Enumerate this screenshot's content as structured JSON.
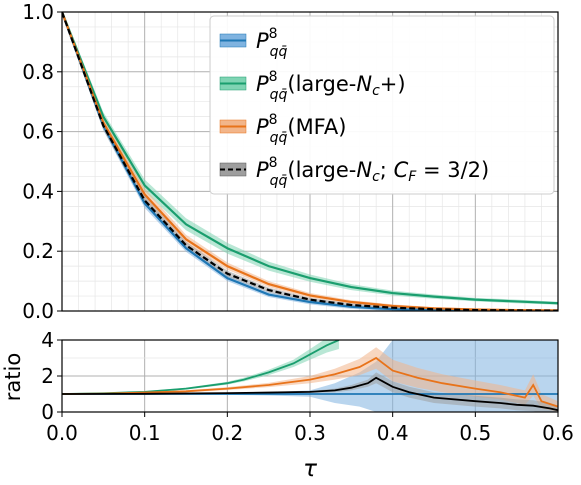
{
  "chart_data": [
    {
      "type": "line",
      "panel": "main",
      "xlabel": "τ",
      "ylabel": "",
      "xlim": [
        0.0,
        0.6
      ],
      "ylim": [
        0.0,
        1.0
      ],
      "xticks": [
        "0.0",
        "0.1",
        "0.2",
        "0.3",
        "0.4",
        "0.5",
        "0.6"
      ],
      "yticks": [
        "0.0",
        "0.2",
        "0.4",
        "0.6",
        "0.8",
        "1.0"
      ],
      "grid": true,
      "minor_grid": true,
      "legend_position": "top-right",
      "series": [
        {
          "name": "P^8_qq̄",
          "color": "#1f77b4",
          "band_color": "#7fb3e0",
          "style": "solid",
          "x": [
            0.0,
            0.05,
            0.1,
            0.15,
            0.2,
            0.25,
            0.3,
            0.35,
            0.4,
            0.45,
            0.5,
            0.55,
            0.6
          ],
          "y": [
            1.0,
            0.62,
            0.36,
            0.21,
            0.11,
            0.055,
            0.03,
            0.014,
            0.006,
            0.003,
            0.002,
            0.001,
            0.001
          ],
          "band": [
            0.01,
            0.015,
            0.015,
            0.012,
            0.01,
            0.008,
            0.008,
            0.007,
            0.006,
            0.005,
            0.004,
            0.003,
            0.003
          ]
        },
        {
          "name": "P^8_qq̄(large-N_c+)",
          "color": "#1a9e6e",
          "band_color": "#7fd4b3",
          "style": "solid",
          "x": [
            0.0,
            0.05,
            0.1,
            0.15,
            0.2,
            0.25,
            0.3,
            0.35,
            0.4,
            0.45,
            0.5,
            0.55,
            0.6
          ],
          "y": [
            1.0,
            0.65,
            0.42,
            0.29,
            0.21,
            0.15,
            0.11,
            0.08,
            0.06,
            0.048,
            0.038,
            0.032,
            0.026
          ],
          "band": [
            0.01,
            0.015,
            0.02,
            0.02,
            0.018,
            0.015,
            0.012,
            0.01,
            0.008,
            0.007,
            0.006,
            0.006,
            0.005
          ]
        },
        {
          "name": "P^8_qq̄(MFA)",
          "color": "#e8731a",
          "band_color": "#f2b58a",
          "style": "solid",
          "x": [
            0.0,
            0.05,
            0.1,
            0.15,
            0.2,
            0.25,
            0.3,
            0.35,
            0.4,
            0.45,
            0.5,
            0.55,
            0.6
          ],
          "y": [
            1.0,
            0.63,
            0.39,
            0.24,
            0.15,
            0.09,
            0.052,
            0.03,
            0.017,
            0.009,
            0.005,
            0.003,
            0.002
          ],
          "band": [
            0.01,
            0.015,
            0.02,
            0.015,
            0.012,
            0.01,
            0.008,
            0.006,
            0.005,
            0.004,
            0.003,
            0.002,
            0.002
          ]
        },
        {
          "name": "P^8_qq̄(large-N_c; C_F = 3/2)",
          "color": "#000000",
          "band_color": "#9e9e9e",
          "style": "dashed",
          "x": [
            0.0,
            0.05,
            0.1,
            0.15,
            0.2,
            0.25,
            0.3,
            0.35,
            0.4,
            0.45,
            0.5,
            0.55,
            0.6
          ],
          "y": [
            1.0,
            0.62,
            0.37,
            0.22,
            0.125,
            0.07,
            0.038,
            0.02,
            0.011,
            0.006,
            0.003,
            0.002,
            0.001
          ],
          "band": [
            0.01,
            0.015,
            0.015,
            0.012,
            0.01,
            0.008,
            0.006,
            0.005,
            0.004,
            0.003,
            0.002,
            0.002,
            0.001
          ]
        }
      ]
    },
    {
      "type": "line",
      "panel": "ratio",
      "xlabel": "τ",
      "ylabel": "ratio",
      "xlim": [
        0.0,
        0.6
      ],
      "ylim": [
        0,
        4
      ],
      "xticks": [
        "0.0",
        "0.1",
        "0.2",
        "0.3",
        "0.4",
        "0.5",
        "0.6"
      ],
      "yticks": [
        "0",
        "2",
        "4"
      ],
      "grid": true,
      "series": [
        {
          "name": "P^8_qq̄",
          "color": "#1f77b4",
          "band_color": "#7fb3e0",
          "x": [
            0.0,
            0.6
          ],
          "y": [
            1.0,
            1.0
          ],
          "band_x": [
            0.0,
            0.1,
            0.2,
            0.25,
            0.3,
            0.33,
            0.36,
            0.38,
            0.4,
            0.45,
            0.5,
            0.55,
            0.6
          ],
          "band_lo": [
            1.0,
            0.97,
            0.95,
            0.92,
            0.85,
            0.5,
            0.3,
            0.0,
            0.0,
            0.0,
            0.0,
            0.0,
            0.0
          ],
          "band_hi": [
            1.0,
            1.03,
            1.06,
            1.1,
            1.2,
            1.6,
            2.2,
            2.8,
            4.0,
            4.0,
            4.0,
            4.0,
            4.0
          ]
        },
        {
          "name": "P^8_qq̄(large-N_c+)",
          "color": "#1a9e6e",
          "band_color": "#7fd4b3",
          "x": [
            0.0,
            0.05,
            0.1,
            0.15,
            0.2,
            0.22,
            0.25,
            0.28,
            0.3,
            0.32,
            0.335
          ],
          "y": [
            1.0,
            1.04,
            1.12,
            1.3,
            1.6,
            1.8,
            2.2,
            2.7,
            3.2,
            3.7,
            4.0
          ],
          "band": [
            0.0,
            0.02,
            0.03,
            0.05,
            0.08,
            0.1,
            0.15,
            0.2,
            0.3,
            0.4,
            0.5
          ]
        },
        {
          "name": "P^8_qq̄(MFA)",
          "color": "#e8731a",
          "band_color": "#f2b58a",
          "x": [
            0.0,
            0.05,
            0.1,
            0.15,
            0.2,
            0.25,
            0.3,
            0.33,
            0.36,
            0.38,
            0.4,
            0.43,
            0.46,
            0.5,
            0.53,
            0.56,
            0.57,
            0.58,
            0.6
          ],
          "y": [
            1.0,
            1.02,
            1.08,
            1.15,
            1.3,
            1.5,
            1.8,
            2.1,
            2.5,
            3.0,
            2.3,
            1.9,
            1.6,
            1.3,
            1.1,
            0.8,
            1.5,
            0.6,
            0.3
          ],
          "band": [
            0.0,
            0.02,
            0.04,
            0.06,
            0.08,
            0.12,
            0.2,
            0.3,
            0.45,
            0.6,
            0.6,
            0.55,
            0.5,
            0.45,
            0.4,
            0.4,
            0.6,
            0.4,
            0.3
          ]
        },
        {
          "name": "P^8_qq̄(large-N_c; C_F = 3/2)",
          "color": "#000000",
          "band_color": "#9e9e9e",
          "x": [
            0.0,
            0.1,
            0.2,
            0.25,
            0.3,
            0.33,
            0.35,
            0.37,
            0.38,
            0.4,
            0.42,
            0.45,
            0.5,
            0.53,
            0.55,
            0.57,
            0.59,
            0.6
          ],
          "y": [
            1.0,
            1.01,
            1.05,
            1.08,
            1.12,
            1.2,
            1.35,
            1.6,
            1.9,
            1.4,
            1.1,
            0.8,
            0.6,
            0.5,
            0.4,
            0.35,
            0.2,
            0.1
          ],
          "band": [
            0.0,
            0.01,
            0.02,
            0.03,
            0.05,
            0.1,
            0.15,
            0.2,
            0.3,
            0.3,
            0.3,
            0.3,
            0.3,
            0.3,
            0.3,
            0.3,
            0.3,
            0.2
          ]
        }
      ]
    }
  ]
}
